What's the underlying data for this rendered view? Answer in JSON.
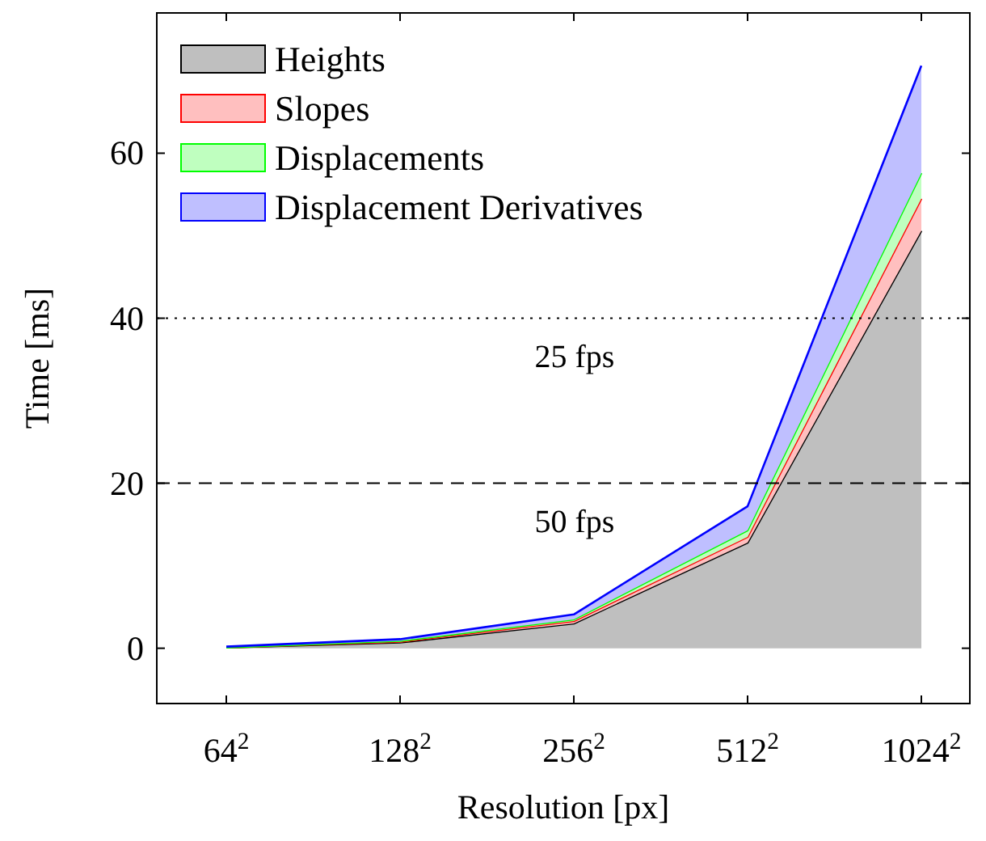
{
  "chart_data": {
    "type": "area",
    "stacked": true,
    "xlabel": "Resolution [px]",
    "ylabel": "Time [ms]",
    "categories": [
      "64$^{2}$",
      "128$^{2}$",
      "256$^{2}$",
      "512$^{2}$",
      "1024$^{2}$"
    ],
    "ylim": [
      -6.7,
      77
    ],
    "yticks": [
      0,
      20,
      40,
      60
    ],
    "legend": "top left",
    "grid": false,
    "series": [
      {
        "name": "Heights",
        "color": "#bfbfbf",
        "values": [
          0.1,
          0.7,
          3.0,
          12.8,
          50.6
        ]
      },
      {
        "name": "Slopes",
        "color": "#ffbfbf",
        "values": [
          0,
          0.1,
          0.3,
          0.7,
          3.9
        ]
      },
      {
        "name": "Displacements",
        "color": "#bfffbf",
        "values": [
          0,
          0.1,
          0.2,
          0.8,
          3.1
        ]
      },
      {
        "name": "Displacement Derivatives",
        "color": "#bfbfff",
        "values": [
          0.1,
          0.2,
          0.6,
          2.9,
          13.0
        ]
      }
    ],
    "ref_lines": [
      {
        "axis": "y",
        "value": 20,
        "label": "50 fps",
        "line_style": "dashed"
      },
      {
        "axis": "y",
        "value": 40,
        "label": "25 fps",
        "line_style": "dotted"
      }
    ]
  }
}
